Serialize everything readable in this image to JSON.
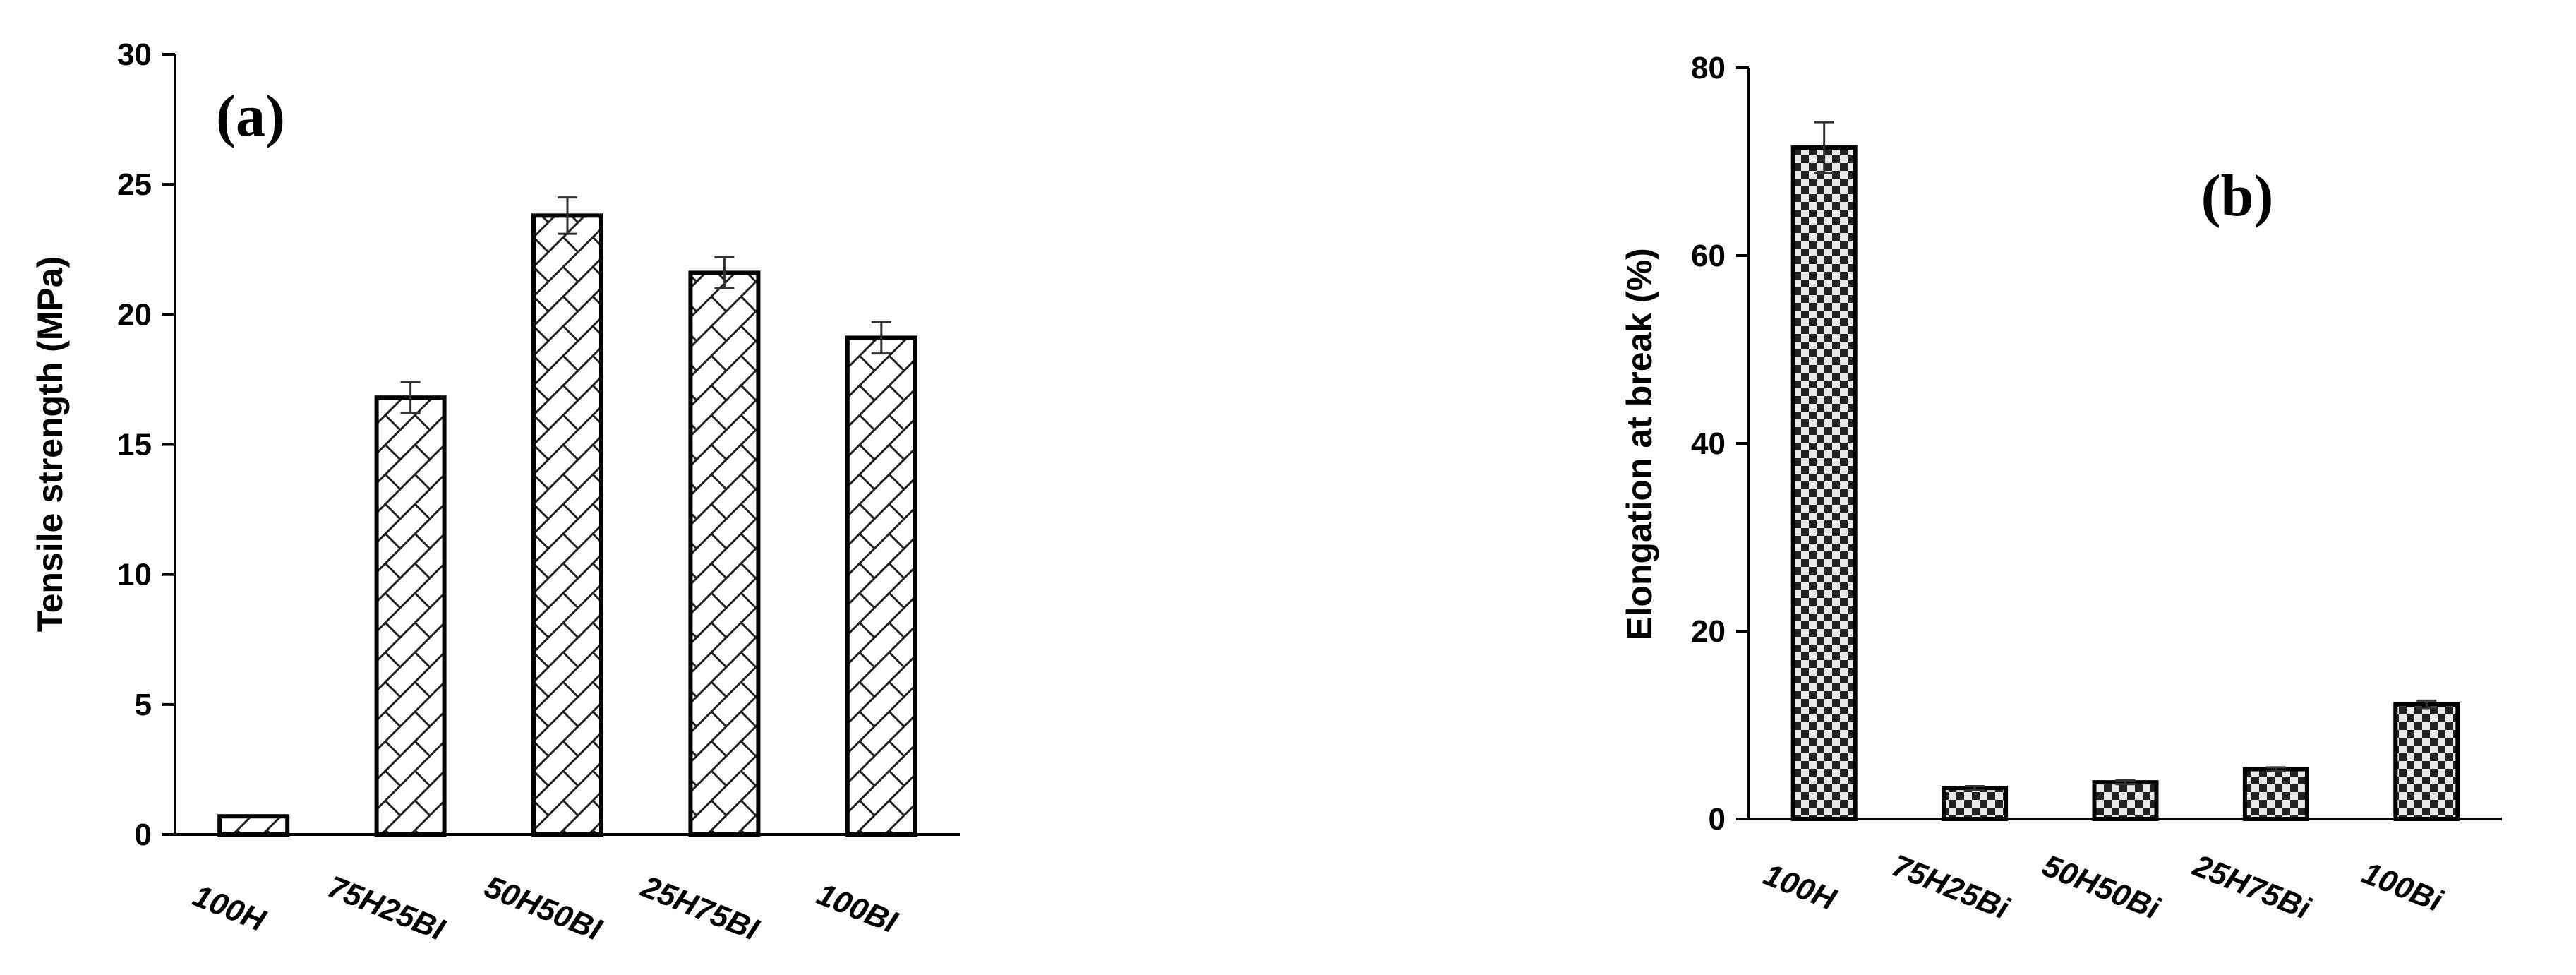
{
  "chart_data": [
    {
      "type": "bar",
      "panel_label": "(a)",
      "ylabel": "Tensile strength (MPa)",
      "xlabel": "",
      "categories": [
        "100H",
        "75H25BI",
        "50H50BI",
        "25H75BI",
        "100BI"
      ],
      "values": [
        0.7,
        16.8,
        23.8,
        21.6,
        19.1
      ],
      "errors": [
        0.0,
        0.6,
        0.7,
        0.6,
        0.6
      ],
      "ylim": [
        0,
        30
      ],
      "yticks": [
        0,
        5,
        10,
        15,
        20,
        25,
        30
      ],
      "grid": false,
      "pattern": "diagonal crosshatch"
    },
    {
      "type": "bar",
      "panel_label": "(b)",
      "ylabel": "Elongation at break (%)",
      "xlabel": "",
      "categories": [
        "100H",
        "75H25Bi",
        "50H50Bi",
        "25H75Bi",
        "100Bi"
      ],
      "values": [
        71.5,
        3.3,
        3.9,
        5.3,
        12.2
      ],
      "errors": [
        2.7,
        0.2,
        0.2,
        0.2,
        0.4
      ],
      "ylim": [
        0,
        80
      ],
      "yticks": [
        0,
        20,
        40,
        60,
        80
      ],
      "grid": false,
      "pattern": "checkerboard"
    }
  ]
}
